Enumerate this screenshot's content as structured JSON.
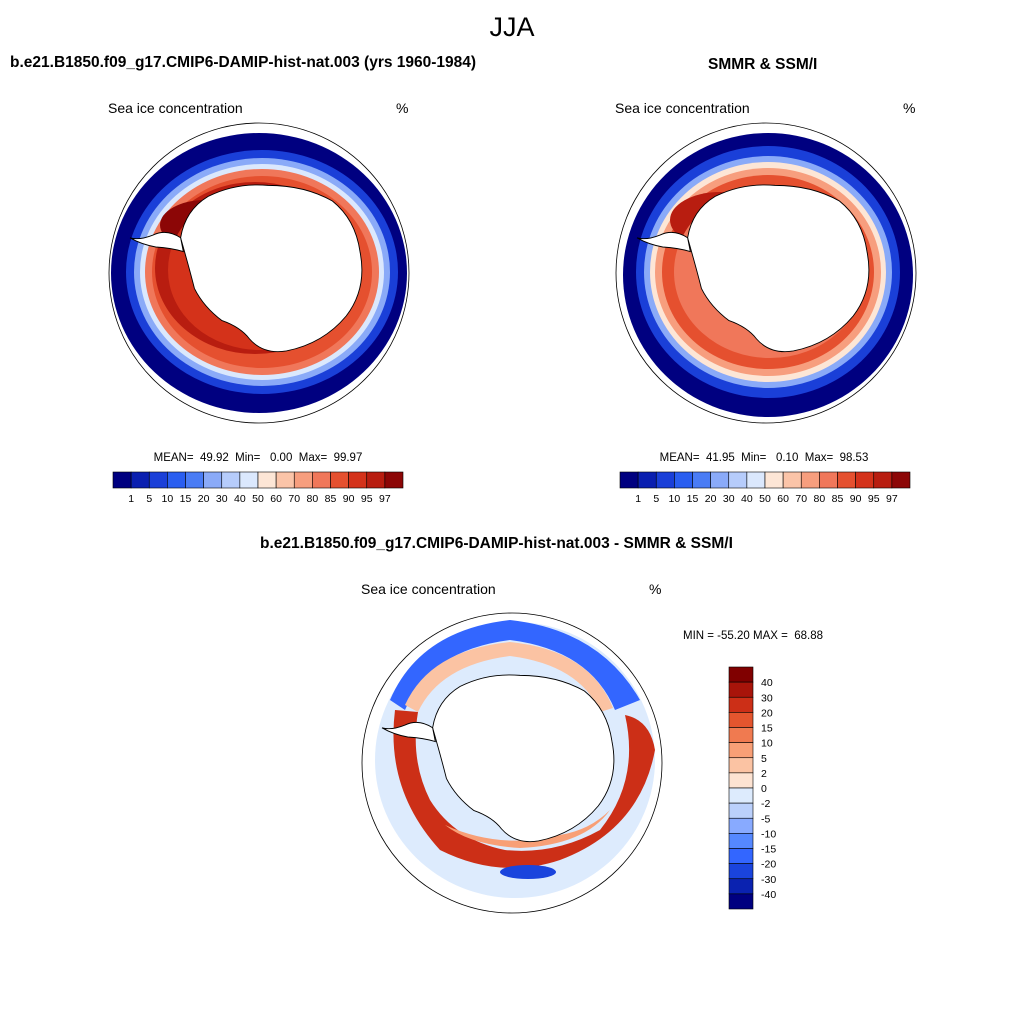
{
  "page": {
    "title": "JJA",
    "left_panel_title": "b.e21.B1850.f09_g17.CMIP6-DAMIP-hist-nat.003 (yrs 1960-1984)",
    "right_panel_title": "SMMR & SSM/I",
    "diff_panel_title": "b.e21.B1850.f09_g17.CMIP6-DAMIP-hist-nat.003 - SMMR & SSM/I"
  },
  "colors": {
    "levels_palette": [
      "#000080",
      "#0a1fb0",
      "#1a3fd8",
      "#2a5ef0",
      "#4a7cf5",
      "#8aaaf8",
      "#b6ccfb",
      "#dbe8fd",
      "#fde6d6",
      "#fbc4a8",
      "#f79e7e",
      "#f0775a",
      "#e5502f",
      "#d4321a",
      "#b81d10",
      "#8c0606"
    ],
    "diff_palette": [
      "#000080",
      "#0a22b0",
      "#1a44dd",
      "#3366ff",
      "#5588ff",
      "#88aaff",
      "#bbd0fb",
      "#ddebfd",
      "#fde3d2",
      "#fbc3a3",
      "#f89f76",
      "#f07a50",
      "#e4552e",
      "#cc2f17",
      "#a8140a",
      "#800000"
    ]
  },
  "chart_data": [
    {
      "type": "heatmap",
      "title": "b.e21.B1850.f09_g17.CMIP6-DAMIP-hist-nat.003 (yrs 1960-1984)",
      "variable": "Sea ice concentration",
      "units": "%",
      "stats": {
        "mean": "49.92",
        "min": "0.00",
        "max": "99.97"
      },
      "colorbar_labels": [
        "1",
        "5",
        "10",
        "15",
        "20",
        "30",
        "40",
        "50",
        "60",
        "70",
        "80",
        "85",
        "90",
        "95",
        "97"
      ]
    },
    {
      "type": "heatmap",
      "title": "SMMR & SSM/I",
      "variable": "Sea ice concentration",
      "units": "%",
      "stats": {
        "mean": "41.95",
        "min": "0.10",
        "max": "98.53"
      },
      "colorbar_labels": [
        "1",
        "5",
        "10",
        "15",
        "20",
        "30",
        "40",
        "50",
        "60",
        "70",
        "80",
        "85",
        "90",
        "95",
        "97"
      ]
    },
    {
      "type": "heatmap",
      "title": "b.e21.B1850.f09_g17.CMIP6-DAMIP-hist-nat.003 - SMMR & SSM/I",
      "variable": "Sea ice concentration",
      "units": "%",
      "stats": {
        "min": "-55.20",
        "max": "68.88"
      },
      "colorbar_labels": [
        "40",
        "30",
        "20",
        "15",
        "10",
        "5",
        "2",
        "0",
        "-2",
        "-5",
        "-10",
        "-15",
        "-20",
        "-30",
        "-40"
      ]
    }
  ],
  "text": {
    "left_var": "Sea ice concentration",
    "left_units": "%",
    "right_var": "Sea ice concentration",
    "right_units": "%",
    "diff_var": "Sea ice concentration",
    "diff_units": "%",
    "left_stats": "MEAN=  49.92  Min=   0.00  Max=  99.97",
    "right_stats": "MEAN=  41.95  Min=   0.10  Max=  98.53",
    "diff_stats": "MIN = -55.20 MAX =  68.88"
  }
}
